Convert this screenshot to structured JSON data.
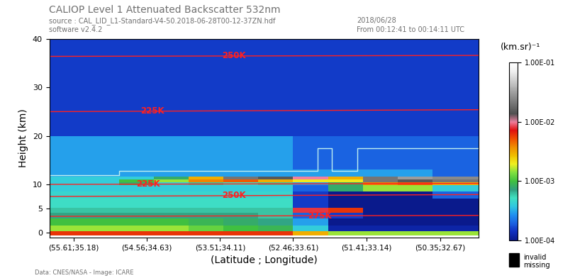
{
  "chart_data": {
    "type": "heatmap",
    "title": "CALIOP Level 1 Attenuated Backscatter 532nm",
    "subtitle": [
      "source : CAL_LID_L1-Standard-V4-50.2018-06-28T00-12-37ZN.hdf",
      "software v2.4.2"
    ],
    "annotations": [
      "2018/06/28",
      "From 00:12:41 to 00:14:11 UTC",
      "Data: CNES/NASA - Image: ICARE",
      "invalid",
      "missing"
    ],
    "x_label": "(Latitude ; Longitude)",
    "y_label": "Height (km)",
    "colorbar_label": "(km.sr)⁻¹",
    "xlim": [
      55.96,
      49.8
    ],
    "xticks": [
      {
        "value": 55.61,
        "label": "(55.61;35.18)"
      },
      {
        "value": 54.56,
        "label": "(54.56;34.63)"
      },
      {
        "value": 53.51,
        "label": "(53.51;34.11)"
      },
      {
        "value": 52.46,
        "label": "(52.46;33.61)"
      },
      {
        "value": 51.41,
        "label": "(51.41;33.14)"
      },
      {
        "value": 50.35,
        "label": "(50.35;32.67)"
      }
    ],
    "ylim": [
      -1,
      40
    ],
    "yticks": [
      0,
      5,
      10,
      20,
      30,
      40
    ],
    "x_edges": [
      55.96,
      55.46,
      54.96,
      54.46,
      53.96,
      53.46,
      52.96,
      52.46,
      51.96,
      51.46,
      50.96,
      50.46,
      49.8
    ],
    "y_edges": [
      -0.5,
      0.3,
      1.5,
      3,
      4.2,
      5.2,
      7,
      8.5,
      9.8,
      10.4,
      11,
      11.6,
      13,
      20,
      40
    ],
    "cells": [
      [
        0.006,
        0.006,
        0.006,
        0.006,
        0.006,
        0.006,
        0.006,
        0.003,
        0.0015,
        0.0015,
        0.0015,
        0.0015
      ],
      [
        0.0015,
        0.0015,
        0.0015,
        0.0015,
        0.0012,
        0.001,
        0.0009,
        0.0004,
        0.00012,
        0.00012,
        0.00012,
        0.00012
      ],
      [
        0.001,
        0.001,
        0.001,
        0.001,
        0.0009,
        0.0008,
        0.0007,
        0.0003,
        0.0001,
        0.0001,
        0.0001,
        0.0001
      ],
      [
        0.0007,
        0.0007,
        0.0007,
        0.0007,
        0.0007,
        0.0007,
        0.0006,
        0.0002,
        0.00015,
        0.0001,
        0.0001,
        0.0001
      ],
      [
        0.0006,
        0.0006,
        0.0006,
        0.0006,
        0.0006,
        0.0006,
        0.0006,
        0.008,
        0.006,
        0.0001,
        0.0001,
        0.0001
      ],
      [
        0.0005,
        0.0005,
        0.0005,
        0.0005,
        0.0005,
        0.0005,
        0.0005,
        0.00015,
        0.0001,
        0.0001,
        0.0001,
        0.0001
      ],
      [
        0.00045,
        0.00045,
        0.00045,
        0.00045,
        0.00045,
        0.00045,
        0.00045,
        0.00015,
        0.0001,
        0.0001,
        0.0001,
        0.0002
      ],
      [
        0.0004,
        0.0004,
        0.0004,
        0.0004,
        0.0004,
        0.0004,
        0.0004,
        0.0002,
        0.0008,
        0.0015,
        0.0015,
        0.0004
      ],
      [
        0.0004,
        0.0004,
        0.0008,
        0.0004,
        0.0006,
        0.0005,
        0.0006,
        0.0003,
        0.0008,
        0.004,
        0.005,
        0.003
      ],
      [
        0.0004,
        0.0004,
        0.001,
        0.0015,
        0.004,
        0.005,
        0.003,
        0.002,
        0.002,
        0.02,
        0.015,
        0.02
      ],
      [
        0.0004,
        0.0004,
        0.0004,
        0.0008,
        0.003,
        0.02,
        0.015,
        0.01,
        0.003,
        0.02,
        0.03,
        0.025
      ],
      [
        0.0003,
        0.0003,
        0.0003,
        0.0003,
        0.0003,
        0.0003,
        0.0003,
        0.0003,
        0.0003,
        0.0003,
        0.0003,
        0.0002
      ],
      [
        0.0003,
        0.0003,
        0.0003,
        0.0003,
        0.0003,
        0.0003,
        0.0003,
        0.0002,
        0.0002,
        0.0002,
        0.0002,
        0.0002
      ],
      [
        0.00015,
        0.00015,
        0.00015,
        0.00015,
        0.00015,
        0.00015,
        0.00015,
        0.00015,
        0.00015,
        0.00015,
        0.00015,
        0.00015
      ]
    ],
    "colorbar_range": [
      0.0001,
      0.1
    ],
    "colorbar_ticks": [
      {
        "value": 0.0001,
        "label": "1.00E-04"
      },
      {
        "value": 0.001,
        "label": "1.00E-03"
      },
      {
        "value": 0.01,
        "label": "1.00E-02"
      },
      {
        "value": 0.1,
        "label": "1.00E-01"
      }
    ],
    "log": "colorbar",
    "series": [
      {
        "name": "275K",
        "color": "#ff2020",
        "x": [
          55.96,
          52.9,
          49.8
        ],
        "values": [
          3.4,
          3.5,
          3.6
        ]
      },
      {
        "name": "250K",
        "color": "#ff2020",
        "x": [
          55.96,
          52.9,
          49.8
        ],
        "values": [
          7.5,
          7.7,
          7.9
        ]
      },
      {
        "name": "225K",
        "color": "#ff2020",
        "x": [
          55.96,
          52.9,
          49.8
        ],
        "values": [
          10.0,
          10.1,
          10.2
        ]
      },
      {
        "name": "225K",
        "color": "#ff2020",
        "x": [
          55.96,
          52.9,
          49.8
        ],
        "values": [
          25.0,
          25.2,
          25.4
        ]
      },
      {
        "name": "250K",
        "color": "#ff2020",
        "x": [
          55.96,
          52.9,
          49.8
        ],
        "values": [
          36.4,
          36.5,
          36.6
        ]
      },
      {
        "color": "#c0f0f0",
        "x": [
          55.96,
          54.96,
          54.96,
          52.11,
          52.11,
          51.91,
          51.91,
          51.54,
          51.54,
          49.8
        ],
        "values": [
          11.9,
          11.9,
          12.8,
          12.8,
          17.5,
          17.5,
          12.8,
          12.8,
          17.5,
          17.5
        ]
      }
    ]
  }
}
